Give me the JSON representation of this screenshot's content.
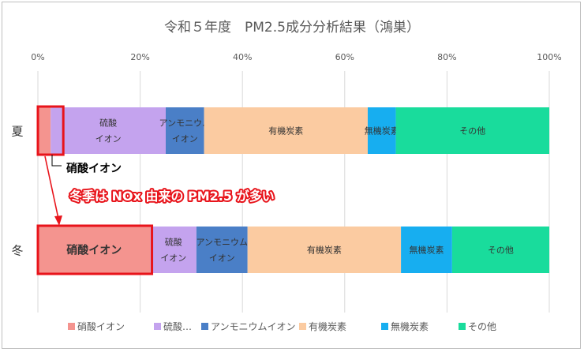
{
  "chart_data": {
    "type": "bar",
    "orientation": "horizontal",
    "stacked": true,
    "percent": true,
    "title": "令和５年度　PM2.5成分分析結果（鴻巣）",
    "categories": [
      "夏",
      "冬"
    ],
    "x_ticks": [
      "0%",
      "20%",
      "40%",
      "60%",
      "80%",
      "100%"
    ],
    "xlim": [
      0,
      100
    ],
    "grid": true,
    "legend_position": "bottom",
    "series": [
      {
        "name": "硝酸イオン",
        "legend_label": "硝酸イオン",
        "color": "#f4948f",
        "values": [
          2.5,
          22
        ],
        "labels": [
          "",
          "硝酸イオン"
        ]
      },
      {
        "name": "硫酸イオン",
        "legend_label": "硫酸…",
        "color": "#c4a3ee",
        "values": [
          22.5,
          9
        ],
        "labels": [
          "硫酸\nイオン",
          "硫酸\nイオン"
        ]
      },
      {
        "name": "アンモニウムイオン",
        "legend_label": "アンモニウムイオン",
        "color": "#4a7fc7",
        "values": [
          7.5,
          10
        ],
        "labels": [
          "アンモニウム\nイオン",
          "アンモニウム\nイオン"
        ]
      },
      {
        "name": "有機炭素",
        "legend_label": "有機炭素",
        "color": "#fbcba1",
        "values": [
          32,
          30
        ],
        "labels": [
          "有機炭素",
          "有機炭素"
        ]
      },
      {
        "name": "無機炭素",
        "legend_label": "無機炭素",
        "color": "#17aef0",
        "values": [
          5.5,
          10
        ],
        "labels": [
          "無機炭素",
          "無機炭素"
        ]
      },
      {
        "name": "その他",
        "legend_label": "その他",
        "color": "#19dc9c",
        "values": [
          30,
          19
        ],
        "labels": [
          "その他",
          "その他"
        ]
      }
    ]
  },
  "annotations": {
    "callout_label": "硝酸イオン",
    "headline": "冬季は NOx 由来の PM2.5 が多い",
    "highlight_color": "#e8141b"
  }
}
